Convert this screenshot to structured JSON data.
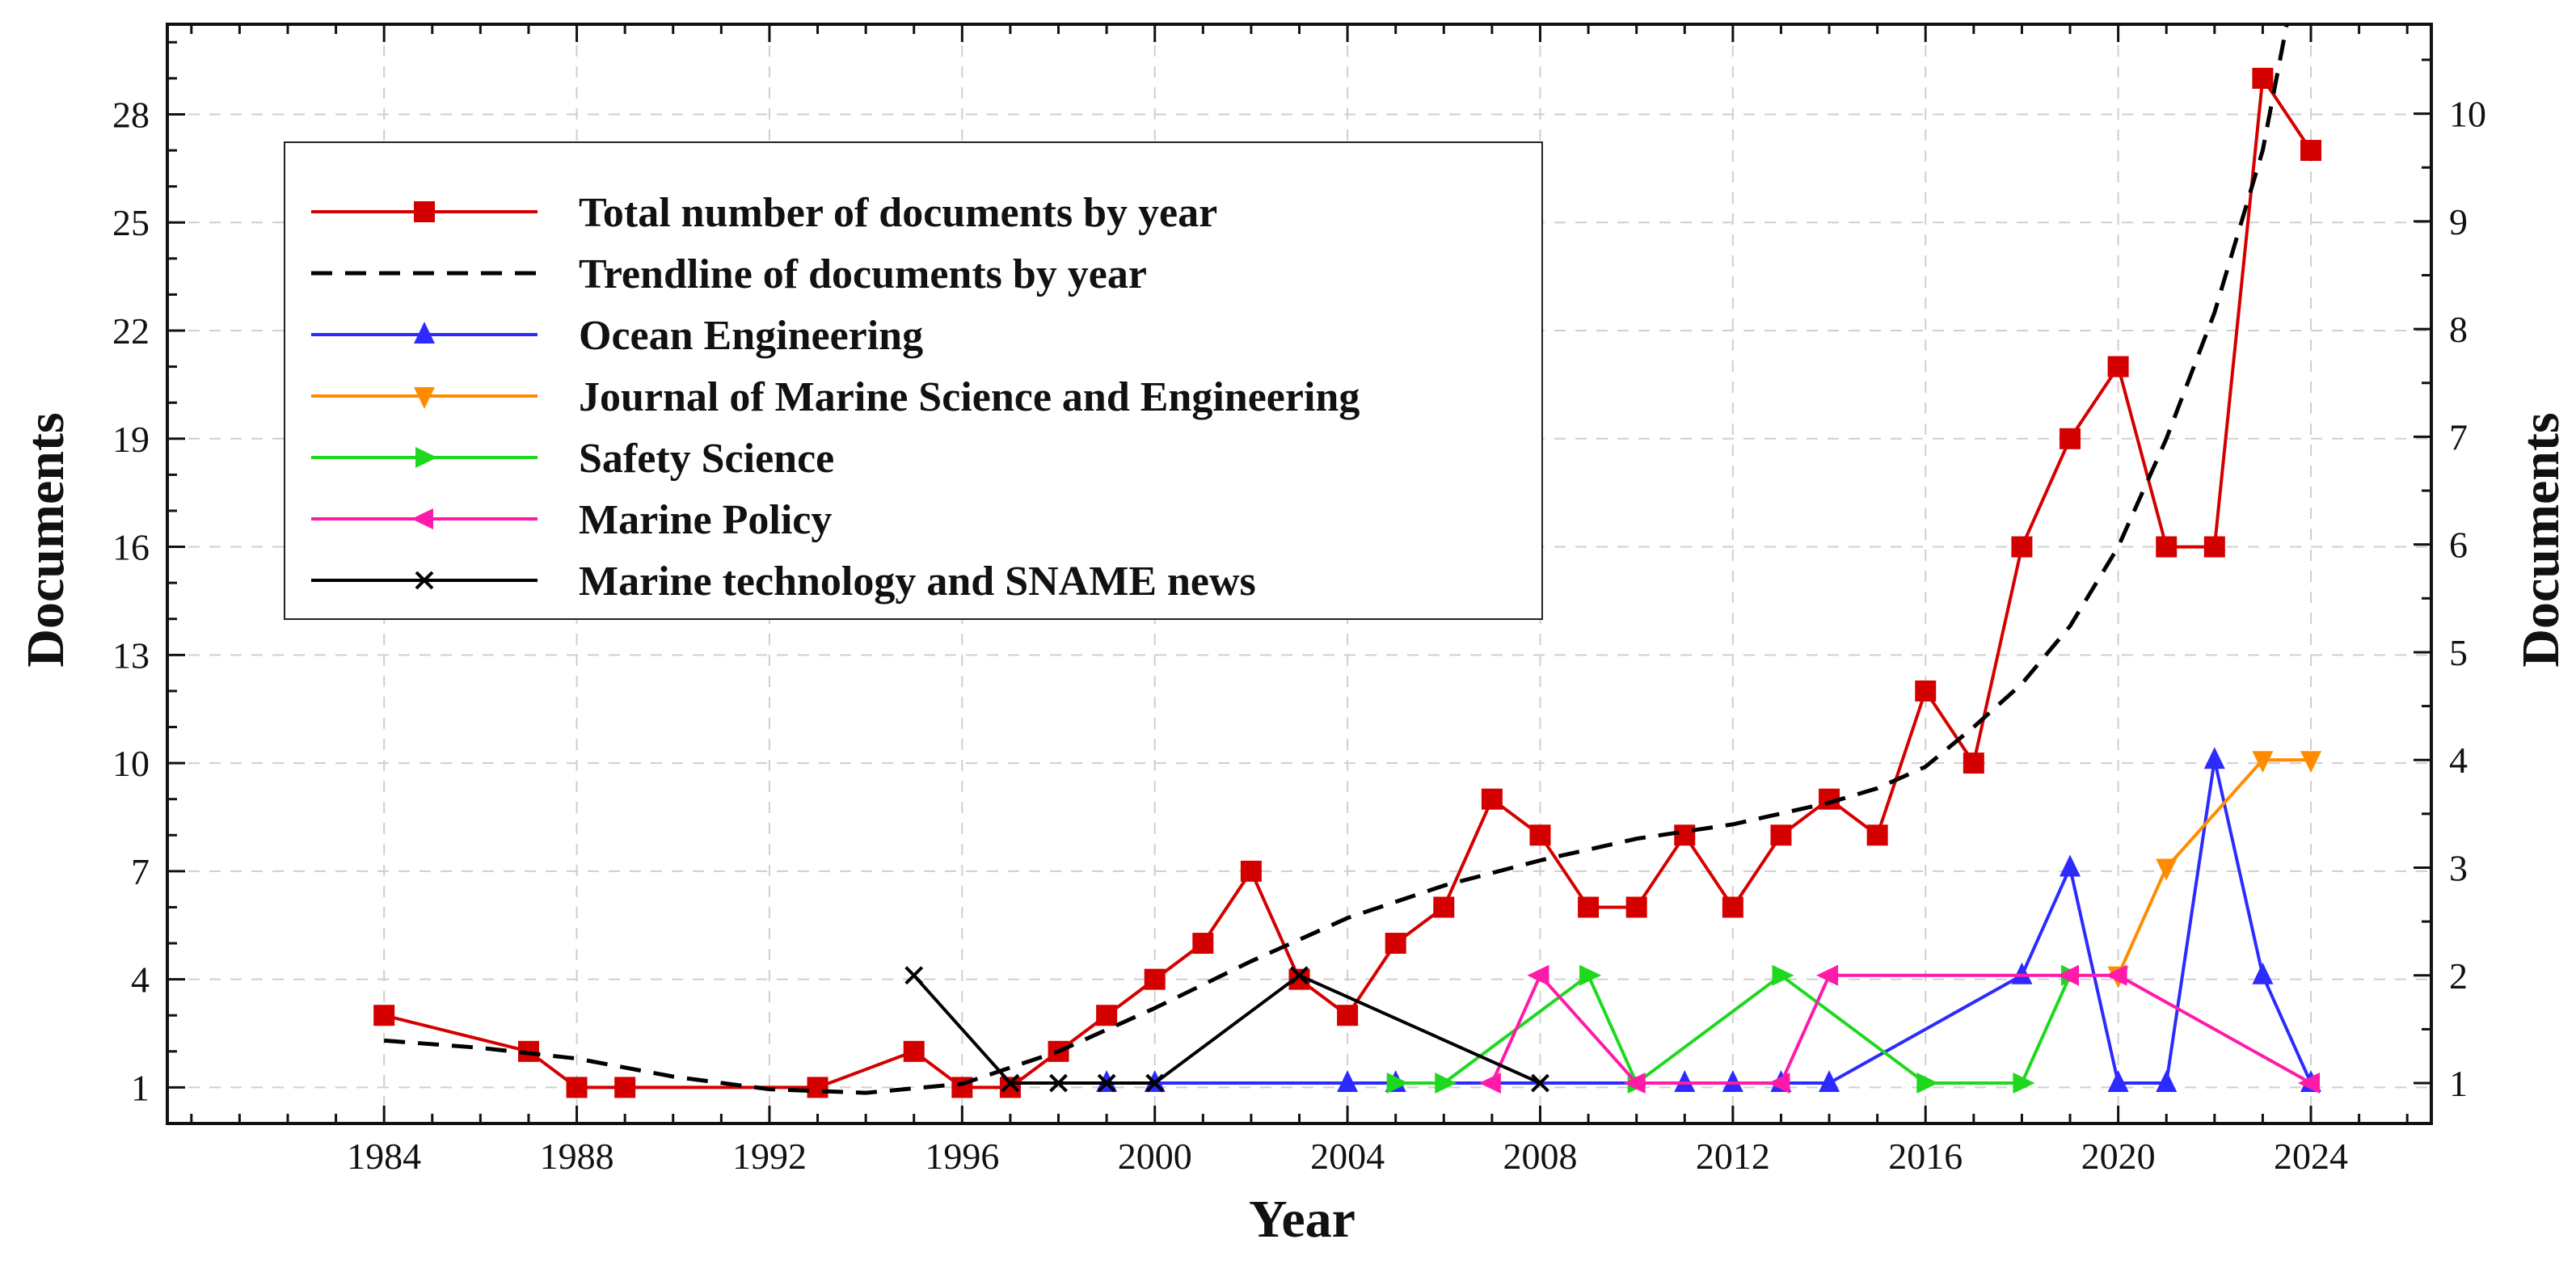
{
  "chart_data": {
    "type": "line",
    "xlabel": "Year",
    "ylabel_left": "Documents",
    "ylabel_right": "Documents",
    "xlim": [
      1979.5,
      2026.5
    ],
    "ylim_left": [
      0,
      30.5
    ],
    "ylim_right": [
      0.625,
      10.83
    ],
    "grid": true,
    "legend_position": "upper-left",
    "x_ticks": [
      1984,
      1988,
      1992,
      1996,
      2000,
      2004,
      2008,
      2012,
      2016,
      2020,
      2024
    ],
    "x_tick_labels": [
      "1984",
      "1988",
      "1992",
      "1996",
      "2000",
      "2004",
      "2008",
      "2012",
      "2016",
      "2020",
      "2024"
    ],
    "y_left_ticks": [
      1,
      4,
      7,
      10,
      13,
      16,
      19,
      22,
      25,
      28
    ],
    "y_left_tick_labels": [
      "1",
      "4",
      "7",
      "10",
      "13",
      "16",
      "19",
      "22",
      "25",
      "28"
    ],
    "y_right_ticks": [
      1,
      2,
      3,
      4,
      5,
      6,
      7,
      8,
      9,
      10
    ],
    "y_right_tick_labels": [
      "1",
      "2",
      "3",
      "4",
      "5",
      "6",
      "7",
      "8",
      "9",
      "10"
    ],
    "series": [
      {
        "name": "Total number of documents by year",
        "axis": "left",
        "color": "#d40000",
        "marker": "square",
        "dashed": false,
        "x": [
          1984,
          1987,
          1988,
          1989,
          1993,
          1995,
          1996,
          1997,
          1998,
          1999,
          2000,
          2001,
          2002,
          2003,
          2004,
          2005,
          2006,
          2007,
          2008,
          2009,
          2010,
          2011,
          2012,
          2013,
          2014,
          2015,
          2016,
          2017,
          2018,
          2019,
          2020,
          2021,
          2022,
          2023,
          2024
        ],
        "values": [
          3,
          2,
          1,
          1,
          1,
          2,
          1,
          1,
          2,
          3,
          4,
          5,
          7,
          4,
          3,
          5,
          6,
          9,
          8,
          6,
          6,
          8,
          6,
          8,
          9,
          8,
          12,
          10,
          16,
          19,
          21,
          16,
          16,
          29,
          27
        ]
      },
      {
        "name": "Trendline of documents by year",
        "axis": "left",
        "color": "#000000",
        "marker": "none",
        "dashed": true,
        "x": [
          1984,
          1986,
          1988,
          1990,
          1992,
          1994,
          1996,
          1998,
          2000,
          2002,
          2004,
          2006,
          2008,
          2010,
          2012,
          2014,
          2015,
          2016,
          2017,
          2018,
          2019,
          2020,
          2021,
          2022,
          2023,
          2023.5
        ],
        "values": [
          2.3,
          2.1,
          1.8,
          1.3,
          0.95,
          0.85,
          1.1,
          2.0,
          3.2,
          4.5,
          5.7,
          6.6,
          7.3,
          7.9,
          8.3,
          8.9,
          9.3,
          9.9,
          11.0,
          12.2,
          13.8,
          16.0,
          19.0,
          22.5,
          27.0,
          30.5
        ]
      },
      {
        "name": "Ocean Engineering",
        "axis": "right",
        "color": "#2b2bff",
        "marker": "triangle-up",
        "dashed": false,
        "x": [
          1999,
          2000,
          2004,
          2005,
          2011,
          2012,
          2013,
          2014,
          2018,
          2019,
          2020,
          2021,
          2022,
          2023,
          2024
        ],
        "values": [
          1,
          1,
          1,
          1,
          1,
          1,
          1,
          1,
          2,
          3,
          1,
          1,
          4,
          2,
          1
        ]
      },
      {
        "name": "Journal of Marine Science and Engineering",
        "axis": "right",
        "color": "#ff8c00",
        "marker": "triangle-down",
        "dashed": false,
        "x": [
          2020,
          2021,
          2023,
          2024
        ],
        "values": [
          2,
          3,
          4,
          4
        ]
      },
      {
        "name": "Safety Science",
        "axis": "right",
        "color": "#1ed81e",
        "marker": "triangle-right",
        "dashed": false,
        "x": [
          2005,
          2006,
          2009,
          2010,
          2013,
          2016,
          2018,
          2019
        ],
        "values": [
          1,
          1,
          2,
          1,
          2,
          1,
          1,
          2
        ]
      },
      {
        "name": "Marine Policy",
        "axis": "right",
        "color": "#ff1aaa",
        "marker": "triangle-left",
        "dashed": false,
        "x": [
          2007,
          2008,
          2010,
          2013,
          2014,
          2019,
          2020,
          2024
        ],
        "values": [
          1,
          2,
          1,
          1,
          2,
          2,
          2,
          1
        ]
      },
      {
        "name": "Marine technology and SNAME news",
        "axis": "right",
        "color": "#000000",
        "marker": "x",
        "dashed": false,
        "x": [
          1995,
          1997,
          1998,
          1999,
          2000,
          2003,
          2008
        ],
        "values": [
          2,
          1,
          1,
          1,
          1,
          2,
          1
        ]
      }
    ]
  }
}
